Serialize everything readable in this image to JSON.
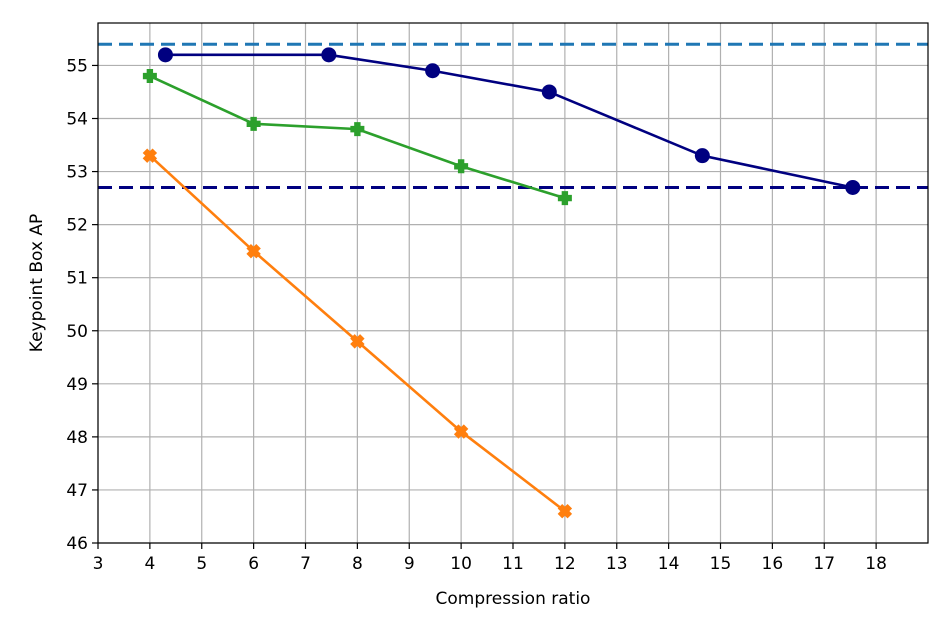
{
  "chart_data": {
    "type": "line",
    "title": "",
    "xlabel": "Compression ratio",
    "ylabel": "Keypoint Box AP",
    "xlim": [
      3,
      19
    ],
    "ylim": [
      46,
      55.8
    ],
    "xticks": [
      3,
      4,
      5,
      6,
      7,
      8,
      9,
      10,
      11,
      12,
      13,
      14,
      15,
      16,
      17,
      18
    ],
    "yticks": [
      46,
      47,
      48,
      49,
      50,
      51,
      52,
      53,
      54,
      55
    ],
    "grid": true,
    "legend": "none",
    "reference_lines": [
      {
        "y": 55.4,
        "color": "#1f77b4",
        "style": "dashed"
      },
      {
        "y": 52.7,
        "color": "#000080",
        "style": "dashed"
      }
    ],
    "series": [
      {
        "color": "#000080",
        "marker": "circle",
        "x": [
          4.3,
          7.45,
          9.45,
          11.7,
          14.65,
          17.55
        ],
        "y": [
          55.2,
          55.2,
          54.9,
          54.5,
          53.3,
          52.7
        ]
      },
      {
        "color": "#2ca02c",
        "marker": "plus",
        "x": [
          4,
          6,
          8,
          10,
          12
        ],
        "y": [
          54.8,
          53.9,
          53.8,
          53.1,
          52.5
        ]
      },
      {
        "color": "#ff7f0e",
        "marker": "x",
        "x": [
          4,
          6,
          8,
          10,
          12
        ],
        "y": [
          53.3,
          51.5,
          49.8,
          48.1,
          46.6
        ]
      }
    ]
  }
}
